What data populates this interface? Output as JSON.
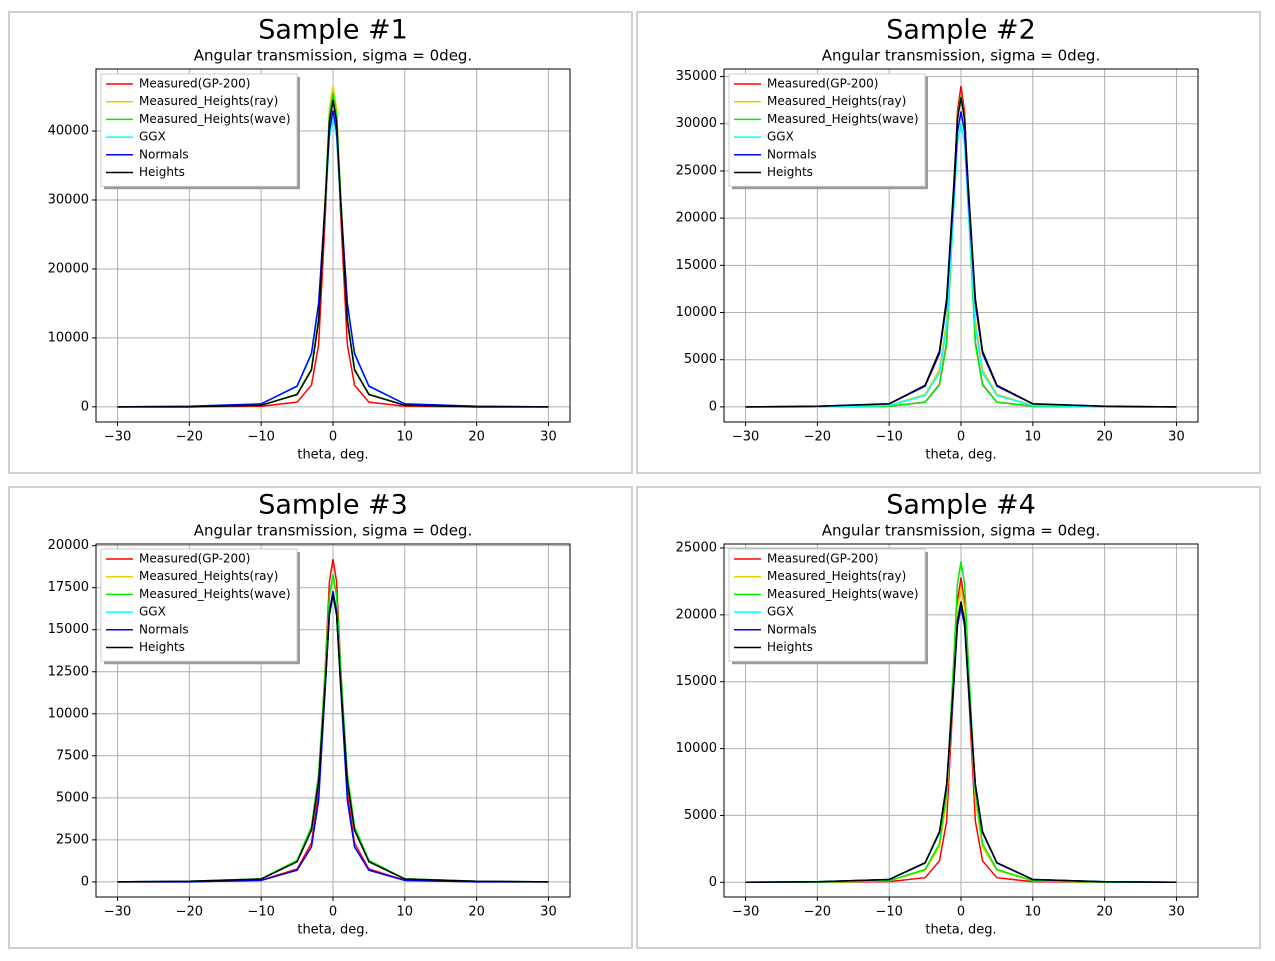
{
  "chart_data": [
    {
      "type": "line",
      "title": "Sample #1",
      "subtitle": "Angular transmission, sigma = 0deg.",
      "xlabel": "theta, deg.",
      "x": [
        -30,
        -20,
        -10,
        -5,
        -3,
        -2,
        -1,
        -0.5,
        0,
        0.5,
        1,
        2,
        3,
        5,
        10,
        20,
        30
      ],
      "xlim": [
        -33,
        33
      ],
      "xticks": [
        {
          "value": -30,
          "label": "−30"
        },
        {
          "value": -20,
          "label": "−20"
        },
        {
          "value": -10,
          "label": "−10"
        },
        0,
        10,
        20,
        30
      ],
      "ylim": [
        -2200,
        49000
      ],
      "yticks": [
        0,
        10000,
        20000,
        30000,
        40000
      ],
      "grid": true,
      "legend": "upper left",
      "series": [
        {
          "name": "Measured(GP-200)",
          "color": "#ff0000",
          "values": [
            0,
            0,
            90,
            675,
            3150,
            9000,
            29250,
            41400,
            45000,
            41400,
            29250,
            9000,
            3150,
            675,
            90,
            0,
            0
          ]
        },
        {
          "name": "Measured_Heights(ray)",
          "color": "#e6cf00",
          "values": [
            0,
            0,
            233,
            1860,
            5580,
            13020,
            32550,
            43245,
            46500,
            43245,
            32550,
            13020,
            5580,
            1860,
            233,
            0,
            0
          ]
        },
        {
          "name": "Measured_Heights(wave)",
          "color": "#00ee00",
          "values": [
            0,
            0,
            228,
            1820,
            5460,
            12740,
            31850,
            42315,
            45500,
            42315,
            31850,
            12740,
            5460,
            1820,
            228,
            0,
            0
          ]
        },
        {
          "name": "GGX",
          "color": "#00ffff",
          "values": [
            0,
            84,
            420,
            2940,
            7560,
            14700,
            30240,
            39060,
            42000,
            39060,
            30240,
            14700,
            7560,
            2940,
            420,
            84,
            0
          ]
        },
        {
          "name": "Normals",
          "color": "#0000ff",
          "values": [
            0,
            86,
            430,
            3010,
            7740,
            15050,
            30960,
            39990,
            43000,
            39990,
            30960,
            15050,
            7740,
            3010,
            430,
            86,
            0
          ]
        },
        {
          "name": "Heights",
          "color": "#000000",
          "values": [
            0,
            0,
            223,
            1780,
            5340,
            12460,
            31150,
            41385,
            44500,
            41385,
            31150,
            12460,
            5340,
            1780,
            223,
            0,
            0
          ]
        }
      ]
    },
    {
      "type": "line",
      "title": "Sample #2",
      "subtitle": "Angular transmission, sigma = 0deg.",
      "xlabel": "theta, deg.",
      "x": [
        -30,
        -20,
        -10,
        -5,
        -3,
        -2,
        -1,
        -0.5,
        0,
        0.5,
        1,
        2,
        3,
        5,
        10,
        20,
        30
      ],
      "xlim": [
        -33,
        33
      ],
      "xticks": [
        {
          "value": -30,
          "label": "−30"
        },
        {
          "value": -20,
          "label": "−20"
        },
        {
          "value": -10,
          "label": "−10"
        },
        0,
        10,
        20,
        30
      ],
      "ylim": [
        -1600,
        35800
      ],
      "yticks": [
        0,
        5000,
        10000,
        15000,
        20000,
        25000,
        30000,
        35000
      ],
      "grid": true,
      "legend": "upper left",
      "series": [
        {
          "name": "Measured(GP-200)",
          "color": "#ff0000",
          "values": [
            0,
            0,
            68,
            510,
            2380,
            6800,
            22100,
            31280,
            34000,
            31280,
            22100,
            6800,
            2380,
            510,
            68,
            0,
            0
          ]
        },
        {
          "name": "Measured_Heights(ray)",
          "color": "#e6cf00",
          "values": [
            0,
            0,
            165,
            1320,
            3960,
            9240,
            23100,
            30690,
            33000,
            30690,
            23100,
            9240,
            3960,
            1320,
            165,
            0,
            0
          ]
        },
        {
          "name": "Measured_Heights(wave)",
          "color": "#00ee00",
          "values": [
            0,
            0,
            66,
            495,
            2310,
            6600,
            21450,
            30360,
            33000,
            30360,
            21450,
            6600,
            2310,
            495,
            66,
            0,
            0
          ]
        },
        {
          "name": "GGX",
          "color": "#00ffff",
          "values": [
            0,
            0,
            150,
            1200,
            3600,
            8400,
            21000,
            27900,
            30000,
            27900,
            21000,
            8400,
            3600,
            1200,
            150,
            0,
            0
          ]
        },
        {
          "name": "Normals",
          "color": "#0000ff",
          "values": [
            0,
            63,
            313,
            2191,
            5634,
            10955,
            22536,
            29109,
            31300,
            29109,
            22536,
            10955,
            5634,
            2191,
            313,
            63,
            0
          ]
        },
        {
          "name": "Heights",
          "color": "#000000",
          "values": [
            0,
            66,
            328,
            2296,
            5904,
            11480,
            23616,
            30504,
            32800,
            30504,
            23616,
            11480,
            5904,
            2296,
            328,
            66,
            0
          ]
        }
      ]
    },
    {
      "type": "line",
      "title": "Sample #3",
      "subtitle": "Angular transmission, sigma = 0deg.",
      "xlabel": "theta, deg.",
      "x": [
        -30,
        -20,
        -10,
        -5,
        -3,
        -2,
        -1,
        -0.5,
        0,
        0.5,
        1,
        2,
        3,
        5,
        10,
        20,
        30
      ],
      "xlim": [
        -33,
        33
      ],
      "xticks": [
        {
          "value": -30,
          "label": "−30"
        },
        {
          "value": -20,
          "label": "−20"
        },
        {
          "value": -10,
          "label": "−10"
        },
        0,
        10,
        20,
        30
      ],
      "ylim": [
        -900,
        20100
      ],
      "yticks": [
        0,
        2500,
        5000,
        7500,
        10000,
        12500,
        15000,
        17500,
        20000
      ],
      "grid": true,
      "legend": "upper left",
      "series": [
        {
          "name": "Measured(GP-200)",
          "color": "#ff0000",
          "values": [
            0,
            0,
            96,
            768,
            2304,
            5376,
            13440,
            17856,
            19200,
            17856,
            13440,
            5376,
            2304,
            768,
            96,
            0,
            0
          ]
        },
        {
          "name": "Measured_Heights(ray)",
          "color": "#e6cf00",
          "values": [
            0,
            36,
            182,
            1274,
            3276,
            6370,
            13104,
            16926,
            18200,
            16926,
            13104,
            6370,
            3276,
            1274,
            182,
            36,
            0
          ]
        },
        {
          "name": "Measured_Heights(wave)",
          "color": "#00ee00",
          "values": [
            0,
            37,
            183,
            1281,
            3294,
            6405,
            13176,
            17019,
            18300,
            17019,
            13176,
            6405,
            3294,
            1281,
            183,
            37,
            0
          ]
        },
        {
          "name": "GGX",
          "color": "#00ffff",
          "values": [
            0,
            34,
            170,
            1190,
            3060,
            5950,
            12240,
            15810,
            17000,
            15810,
            12240,
            5950,
            3060,
            1190,
            170,
            34,
            0
          ]
        },
        {
          "name": "Normals",
          "color": "#0000ff",
          "values": [
            0,
            0,
            87,
            692,
            2076,
            4844,
            12110,
            16089,
            17300,
            16089,
            12110,
            4844,
            2076,
            692,
            87,
            0,
            0
          ]
        },
        {
          "name": "Heights",
          "color": "#000000",
          "values": [
            0,
            34,
            171,
            1197,
            3078,
            5985,
            12312,
            15903,
            17100,
            15903,
            12312,
            5985,
            3078,
            1197,
            171,
            34,
            0
          ]
        }
      ]
    },
    {
      "type": "line",
      "title": "Sample #4",
      "subtitle": "Angular transmission, sigma = 0deg.",
      "xlabel": "theta, deg.",
      "x": [
        -30,
        -20,
        -10,
        -5,
        -3,
        -2,
        -1,
        -0.5,
        0,
        0.5,
        1,
        2,
        3,
        5,
        10,
        20,
        30
      ],
      "xlim": [
        -33,
        33
      ],
      "xticks": [
        {
          "value": -30,
          "label": "−30"
        },
        {
          "value": -20,
          "label": "−20"
        },
        {
          "value": -10,
          "label": "−10"
        },
        0,
        10,
        20,
        30
      ],
      "ylim": [
        -1100,
        25300
      ],
      "yticks": [
        0,
        5000,
        10000,
        15000,
        20000,
        25000
      ],
      "grid": true,
      "legend": "upper left",
      "series": [
        {
          "name": "Measured(GP-200)",
          "color": "#ff0000",
          "values": [
            0,
            0,
            46,
            342,
            1596,
            4560,
            14820,
            20976,
            22800,
            20976,
            14820,
            4560,
            1596,
            342,
            46,
            0,
            0
          ]
        },
        {
          "name": "Measured_Heights(ray)",
          "color": "#e6cf00",
          "values": [
            0,
            0,
            110,
            880,
            2640,
            6160,
            15400,
            20460,
            22000,
            20460,
            15400,
            6160,
            2640,
            880,
            110,
            0,
            0
          ]
        },
        {
          "name": "Measured_Heights(wave)",
          "color": "#00ee00",
          "values": [
            0,
            0,
            120,
            960,
            2880,
            6720,
            16800,
            22320,
            24000,
            22320,
            16800,
            6720,
            2880,
            960,
            120,
            0,
            0
          ]
        },
        {
          "name": "GGX",
          "color": "#00ffff",
          "values": [
            0,
            41,
            206,
            1442,
            3708,
            7210,
            14832,
            19158,
            20600,
            19158,
            14832,
            7210,
            3708,
            1442,
            206,
            41,
            0
          ]
        },
        {
          "name": "Normals",
          "color": "#0000ff",
          "values": [
            0,
            41,
            206,
            1442,
            3708,
            7210,
            14832,
            19158,
            20600,
            19158,
            14832,
            7210,
            3708,
            1442,
            206,
            41,
            0
          ]
        },
        {
          "name": "Heights",
          "color": "#000000",
          "values": [
            0,
            42,
            210,
            1470,
            3780,
            7350,
            15120,
            19530,
            21000,
            19530,
            15120,
            7350,
            3780,
            1470,
            210,
            42,
            0
          ]
        }
      ]
    }
  ]
}
